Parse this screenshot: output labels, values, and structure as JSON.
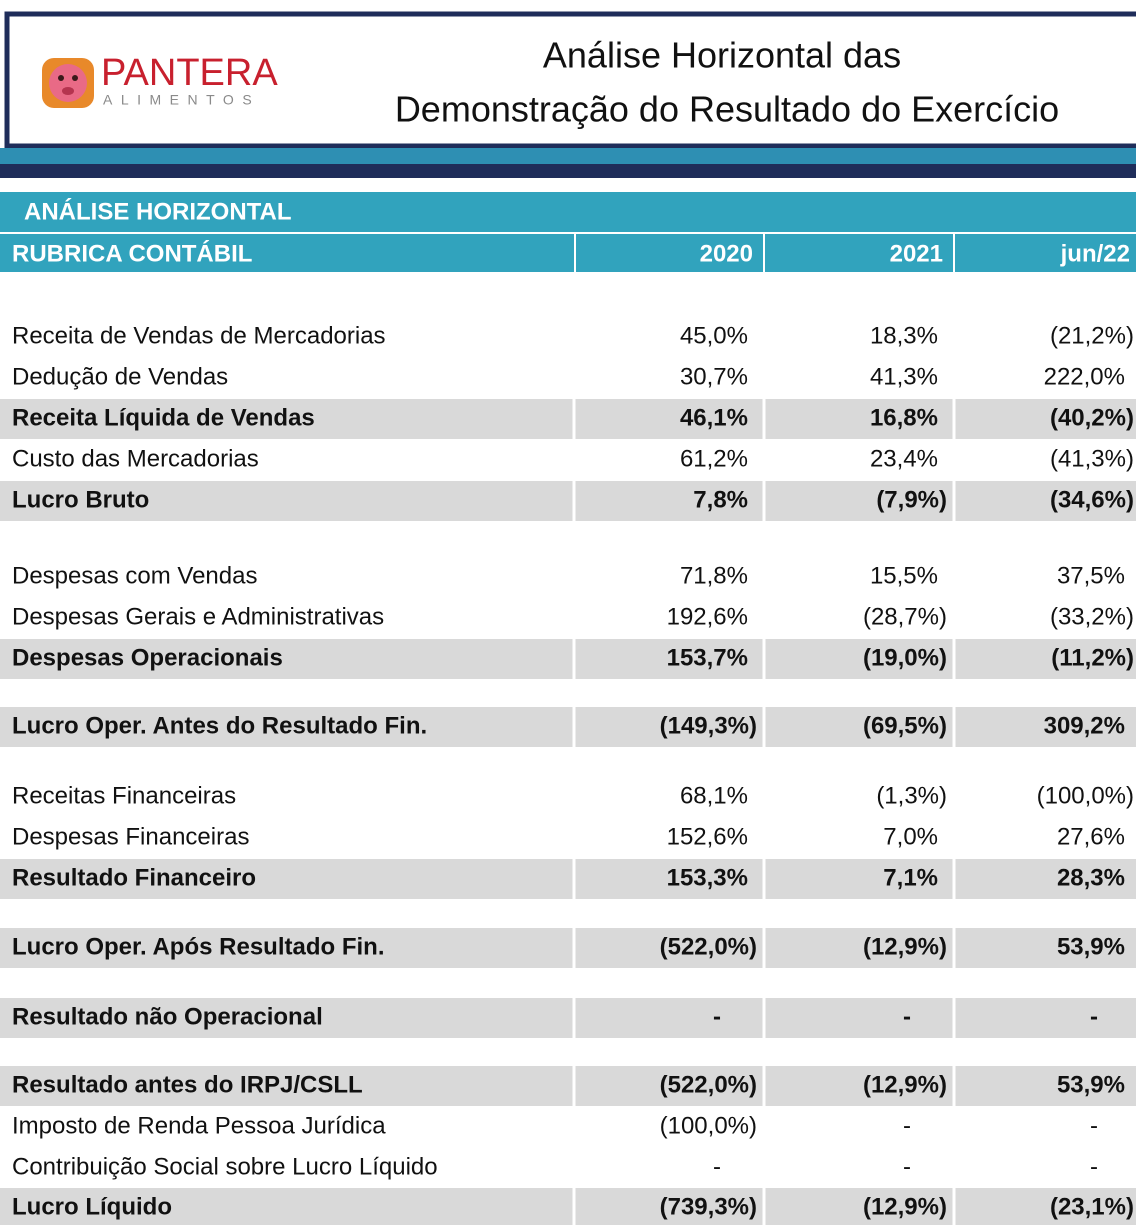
{
  "header": {
    "logo": {
      "name": "PANTERA",
      "subtitle": "ALIMENTOS"
    },
    "title": [
      "Análise Horizontal das",
      "Demonstração do Resultado do Exercício"
    ]
  },
  "table": {
    "section": "ANÁLISE HORIZONTAL",
    "columns": [
      "RUBRICA CONTÁBIL",
      "2020",
      "2021",
      "jun/22"
    ],
    "rows": [
      {
        "label": "Receita de Vendas de Mercadorias",
        "values": [
          "45,0%",
          "18,3%",
          "(21,2%)"
        ],
        "bold": false
      },
      {
        "label": "Dedução de Vendas",
        "values": [
          "30,7%",
          "41,3%",
          "222,0%"
        ],
        "bold": false
      },
      {
        "label": "Receita Líquida de Vendas",
        "values": [
          "46,1%",
          "16,8%",
          "(40,2%)"
        ],
        "bold": true
      },
      {
        "label": "Custo das Mercadorias",
        "values": [
          "61,2%",
          "23,4%",
          "(41,3%)"
        ],
        "bold": false
      },
      {
        "label": "Lucro Bruto",
        "values": [
          "7,8%",
          "(7,9%)",
          "(34,6%)"
        ],
        "bold": true
      },
      {
        "label": "Despesas com Vendas",
        "values": [
          "71,8%",
          "15,5%",
          "37,5%"
        ],
        "bold": false
      },
      {
        "label": "Despesas Gerais e Administrativas",
        "values": [
          "192,6%",
          "(28,7%)",
          "(33,2%)"
        ],
        "bold": false
      },
      {
        "label": "Despesas Operacionais",
        "values": [
          "153,7%",
          "(19,0%)",
          "(11,2%)"
        ],
        "bold": true
      },
      {
        "label": "Lucro Oper. Antes do Resultado Fin.",
        "values": [
          "(149,3%)",
          "(69,5%)",
          "309,2%"
        ],
        "bold": true
      },
      {
        "label": "Receitas Financeiras",
        "values": [
          "68,1%",
          "(1,3%)",
          "(100,0%)"
        ],
        "bold": false
      },
      {
        "label": "Despesas Financeiras",
        "values": [
          "152,6%",
          "7,0%",
          "27,6%"
        ],
        "bold": false
      },
      {
        "label": "Resultado Financeiro",
        "values": [
          "153,3%",
          "7,1%",
          "28,3%"
        ],
        "bold": true
      },
      {
        "label": "Lucro Oper. Após Resultado Fin.",
        "values": [
          "(522,0%)",
          "(12,9%)",
          "53,9%"
        ],
        "bold": true
      },
      {
        "label": "Resultado não Operacional",
        "values": [
          "-",
          "-",
          "-"
        ],
        "bold": true
      },
      {
        "label": "Resultado antes do IRPJ/CSLL",
        "values": [
          "(522,0%)",
          "(12,9%)",
          "53,9%"
        ],
        "bold": true
      },
      {
        "label": "Imposto de Renda Pessoa Jurídica",
        "values": [
          "(100,0%)",
          "-",
          "-"
        ],
        "bold": false
      },
      {
        "label": "Contribuição Social sobre Lucro Líquido",
        "values": [
          "-",
          "-",
          "-"
        ],
        "bold": false
      },
      {
        "label": "Lucro Líquido",
        "values": [
          "(739,3%)",
          "(12,9%)",
          "(23,1%)"
        ],
        "bold": true
      }
    ]
  }
}
